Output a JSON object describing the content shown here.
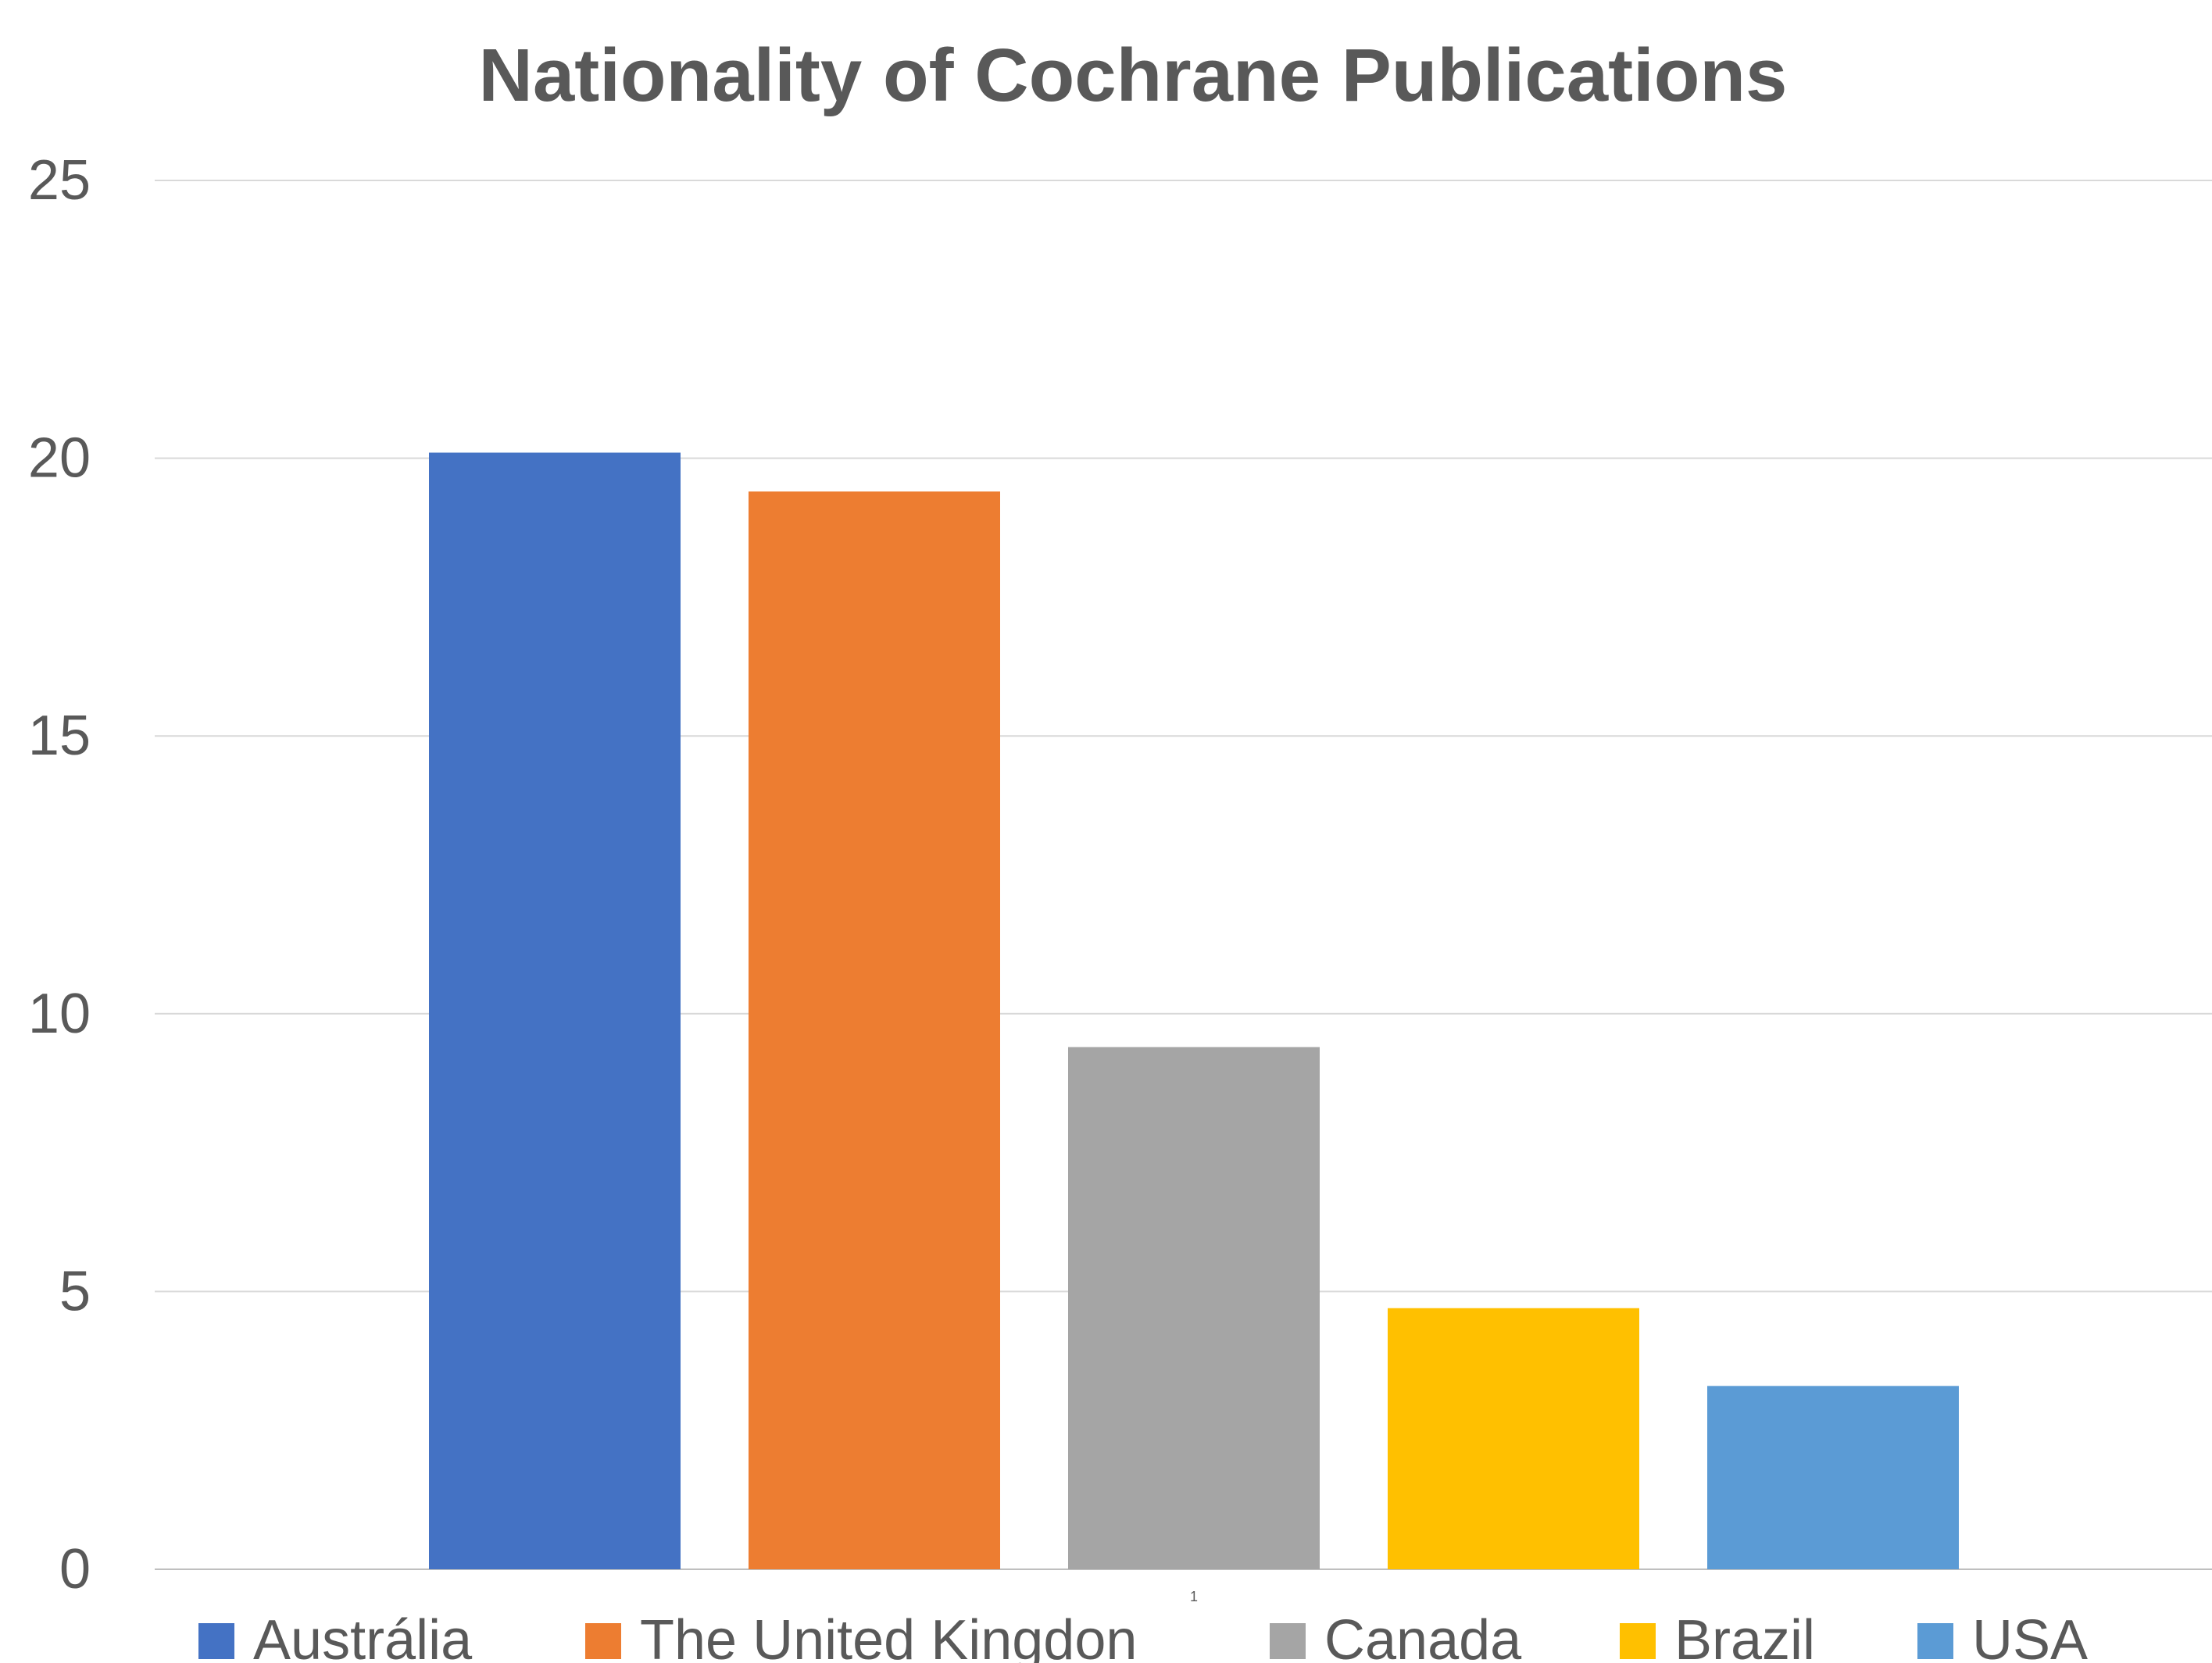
{
  "chart_data": {
    "type": "bar",
    "title": "Nationality of Cochrane Publications",
    "xlabel": "",
    "ylabel": "",
    "categories": [
      "1"
    ],
    "ylim": [
      0,
      25
    ],
    "yticks": [
      0,
      5,
      10,
      15,
      20,
      25
    ],
    "grid": true,
    "legend_position": "bottom",
    "series": [
      {
        "name": "Austrália",
        "values": [
          20.1
        ],
        "color": "#4472C4"
      },
      {
        "name": "The United Kingdon",
        "values": [
          19.4
        ],
        "color": "#ED7D31"
      },
      {
        "name": "Canada",
        "values": [
          9.4
        ],
        "color": "#A5A5A5"
      },
      {
        "name": "Brazil",
        "values": [
          4.7
        ],
        "color": "#FFC000"
      },
      {
        "name": "USA",
        "values": [
          3.3
        ],
        "color": "#5B9BD5"
      }
    ]
  }
}
